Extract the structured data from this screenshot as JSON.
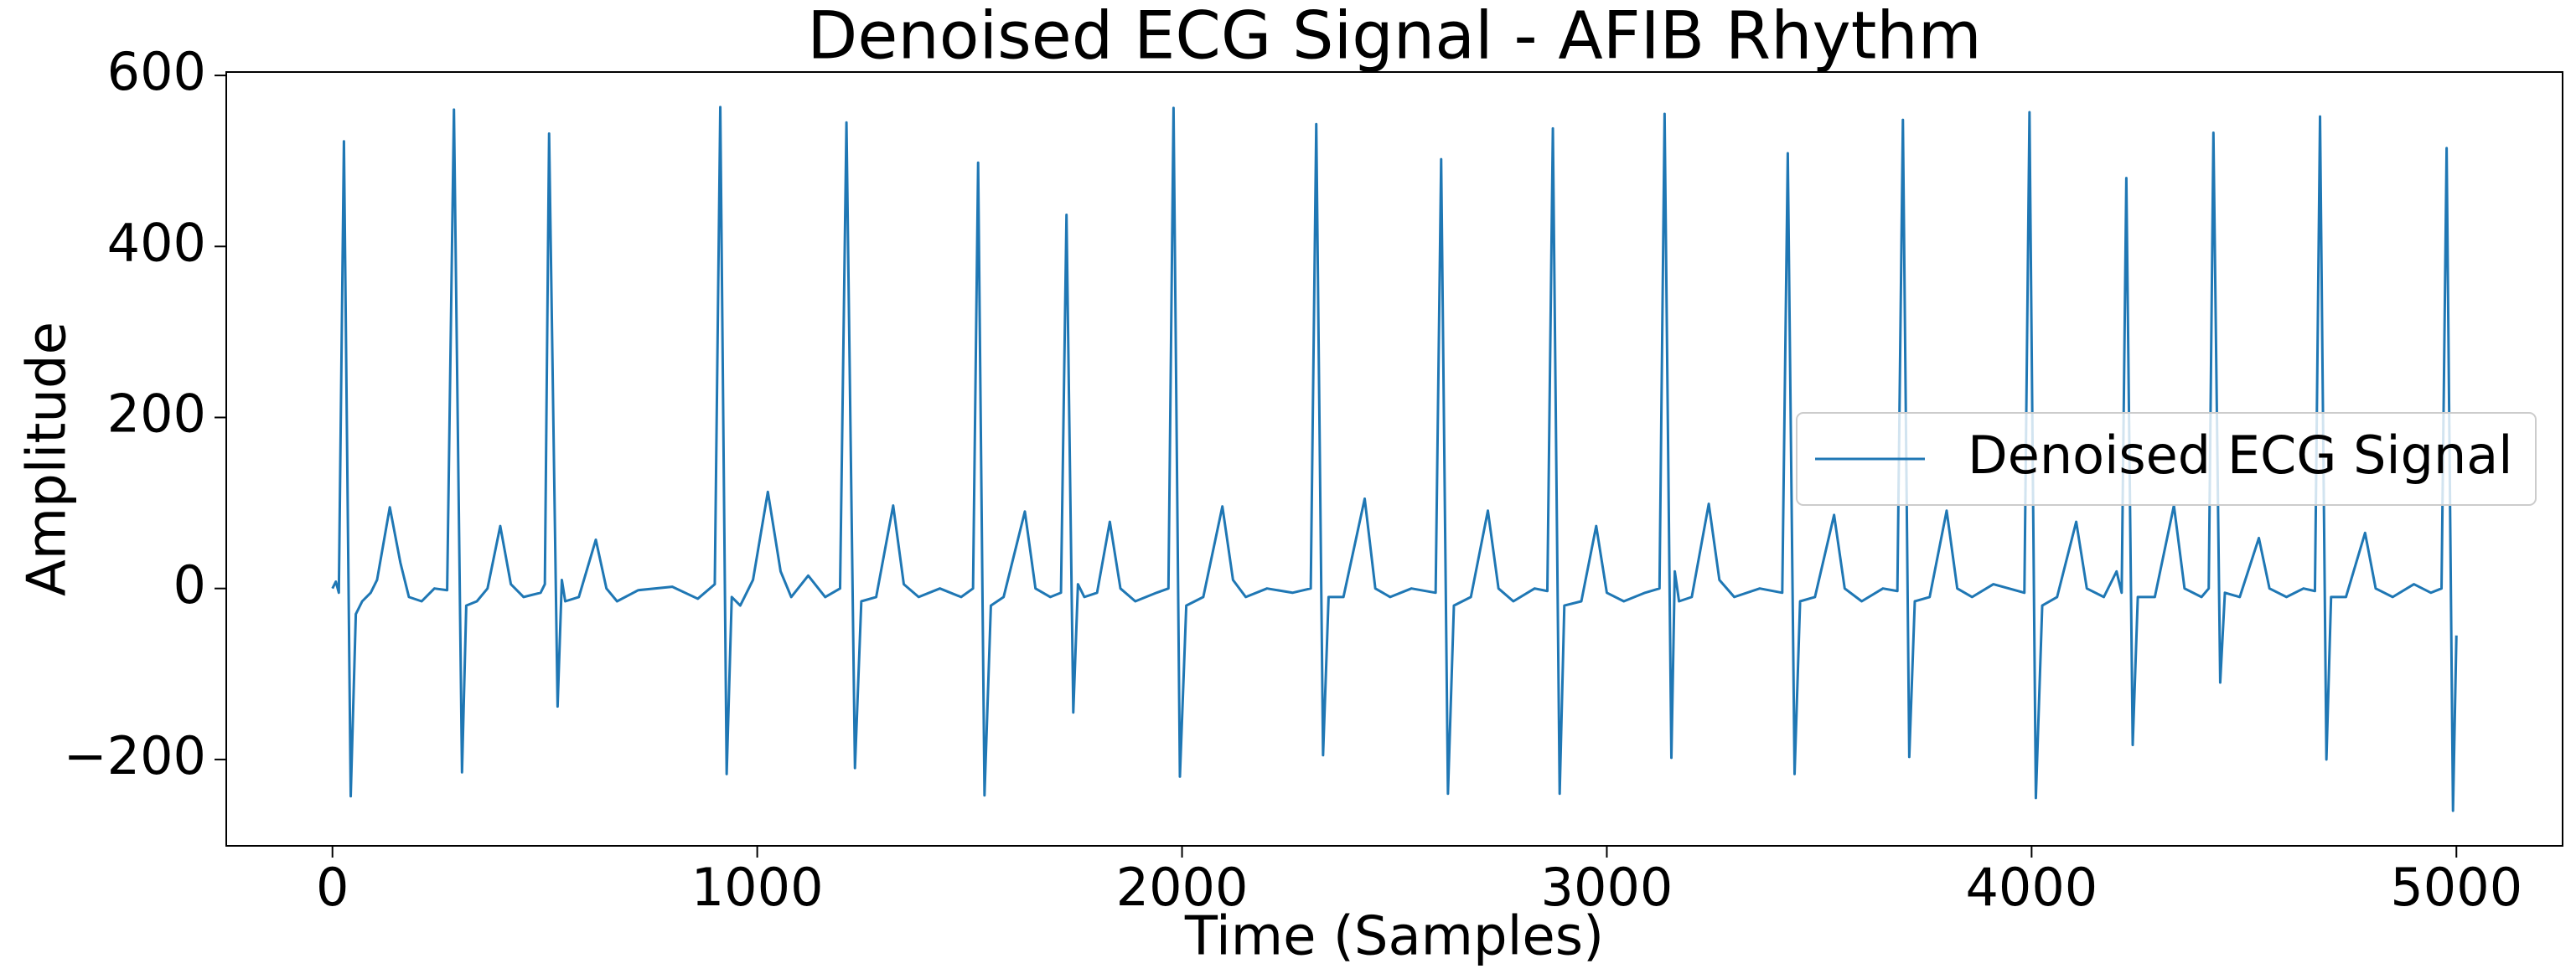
{
  "chart_data": {
    "type": "line",
    "title": "Denoised ECG Signal - AFIB Rhythm",
    "xlabel": "Time (Samples)",
    "ylabel": "Amplitude",
    "legend_loc": "center right",
    "xlim": [
      -250,
      5250
    ],
    "ylim": [
      -301,
      604
    ],
    "xticks": [
      0,
      1000,
      2000,
      3000,
      4000,
      5000
    ],
    "yticks": [
      {
        "value": -200,
        "label": "−200"
      },
      0,
      200,
      400,
      600
    ],
    "x": [
      0,
      8,
      15,
      27,
      43,
      55,
      70,
      90,
      105,
      135,
      160,
      180,
      210,
      240,
      270,
      286,
      305,
      315,
      340,
      365,
      395,
      420,
      450,
      490,
      500,
      510,
      530,
      540,
      548,
      580,
      620,
      645,
      670,
      720,
      800,
      860,
      900,
      913,
      928,
      940,
      960,
      990,
      1025,
      1055,
      1080,
      1120,
      1160,
      1195,
      1210,
      1230,
      1245,
      1280,
      1320,
      1345,
      1380,
      1430,
      1480,
      1508,
      1520,
      1535,
      1550,
      1580,
      1630,
      1655,
      1690,
      1715,
      1728,
      1744,
      1755,
      1770,
      1800,
      1830,
      1855,
      1890,
      1940,
      1968,
      1980,
      1995,
      2010,
      2050,
      2095,
      2120,
      2150,
      2200,
      2260,
      2303,
      2316,
      2332,
      2345,
      2380,
      2430,
      2455,
      2490,
      2540,
      2597,
      2610,
      2626,
      2640,
      2680,
      2720,
      2745,
      2780,
      2830,
      2860,
      2873,
      2889,
      2900,
      2940,
      2975,
      3000,
      3040,
      3090,
      3124,
      3136,
      3152,
      3160,
      3170,
      3200,
      3240,
      3265,
      3300,
      3360,
      3413,
      3426,
      3442,
      3455,
      3490,
      3535,
      3560,
      3600,
      3650,
      3684,
      3697,
      3712,
      3725,
      3760,
      3800,
      3825,
      3860,
      3910,
      3983,
      3995,
      4010,
      4025,
      4060,
      4105,
      4130,
      4170,
      4200,
      4212,
      4223,
      4238,
      4250,
      4290,
      4335,
      4360,
      4400,
      4417,
      4428,
      4444,
      4455,
      4490,
      4535,
      4560,
      4600,
      4640,
      4667,
      4679,
      4694,
      4705,
      4740,
      4785,
      4810,
      4850,
      4900,
      4940,
      4965,
      4977,
      4992,
      5000
    ],
    "series": [
      {
        "name": "Denoised ECG Signal",
        "color": "#1f77b4",
        "values": [
          0,
          8,
          -5,
          523,
          -243,
          -30,
          -15,
          -5,
          10,
          95,
          30,
          -10,
          -15,
          0,
          -2,
          560,
          -215,
          -20,
          -15,
          0,
          73,
          5,
          -10,
          -5,
          5,
          532,
          -138,
          10,
          -15,
          -10,
          57,
          0,
          -15,
          -2,
          2,
          -12,
          5,
          563,
          -217,
          -10,
          -20,
          10,
          113,
          20,
          -10,
          15,
          -10,
          0,
          545,
          -210,
          -15,
          -10,
          97,
          5,
          -10,
          0,
          -10,
          0,
          498,
          -242,
          -20,
          -10,
          90,
          0,
          -10,
          -5,
          437,
          -145,
          5,
          -10,
          -5,
          78,
          0,
          -15,
          -5,
          0,
          562,
          -220,
          -20,
          -10,
          96,
          10,
          -10,
          0,
          -5,
          0,
          543,
          -195,
          -10,
          -10,
          105,
          0,
          -10,
          0,
          -5,
          502,
          -240,
          -20,
          -10,
          91,
          0,
          -15,
          0,
          -3,
          538,
          -240,
          -20,
          -15,
          73,
          -5,
          -15,
          -5,
          0,
          555,
          -198,
          20,
          -15,
          -10,
          99,
          10,
          -10,
          0,
          -5,
          509,
          -217,
          -15,
          -10,
          86,
          0,
          -15,
          0,
          -3,
          548,
          -197,
          -15,
          -10,
          91,
          0,
          -10,
          5,
          -5,
          557,
          -245,
          -20,
          -10,
          78,
          0,
          -10,
          20,
          -5,
          480,
          -183,
          -10,
          -10,
          97,
          0,
          -10,
          0,
          533,
          -110,
          -5,
          -10,
          59,
          0,
          -10,
          0,
          -3,
          552,
          -200,
          -10,
          -10,
          65,
          0,
          -10,
          5,
          -5,
          0,
          515,
          -260,
          -55
        ]
      }
    ]
  }
}
